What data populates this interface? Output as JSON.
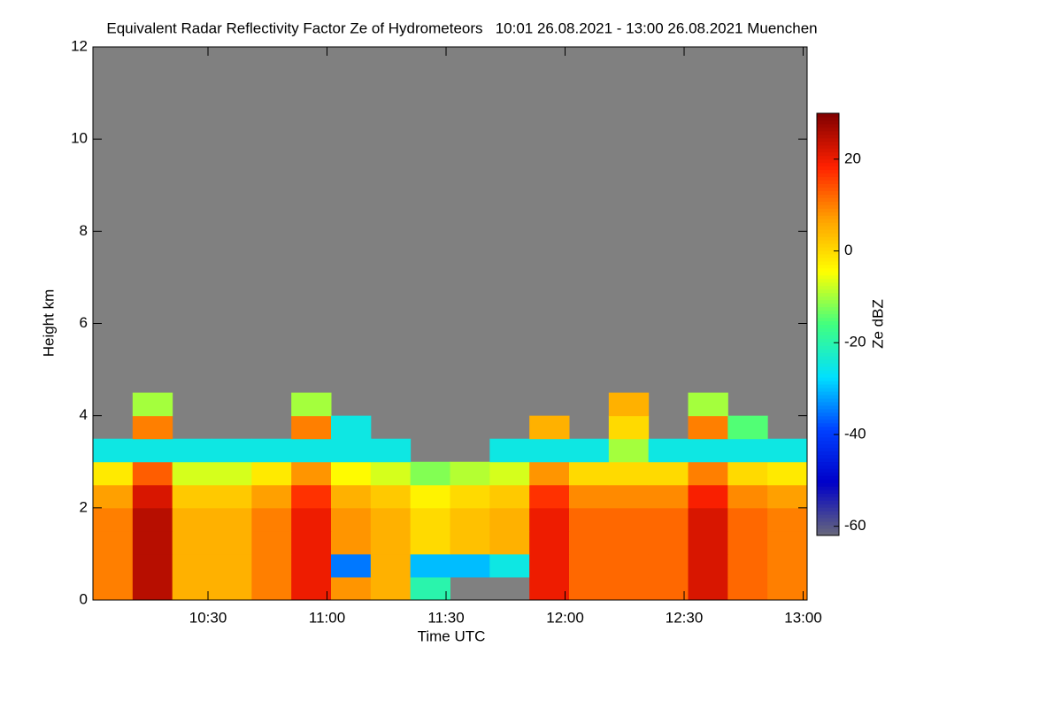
{
  "chart_data": {
    "type": "heatmap",
    "title": "Equivalent Radar Reflectivity Factor Ze of Hydrometeors   10:01 26.08.2021 - 13:00 26.08.2021 Muenchen",
    "xlabel": "Time UTC",
    "ylabel": "Height km",
    "colorbar_label": "Ze dBZ",
    "xlim": [
      1,
      181
    ],
    "xticks": [
      {
        "value": 30,
        "label": "10:30"
      },
      {
        "value": 60,
        "label": "11:00"
      },
      {
        "value": 90,
        "label": "11:30"
      },
      {
        "value": 120,
        "label": "12:00"
      },
      {
        "value": 150,
        "label": "12:30"
      },
      {
        "value": 180,
        "label": "13:00"
      }
    ],
    "ylim": [
      0,
      12
    ],
    "yticks": [
      0,
      2,
      4,
      6,
      8,
      10,
      12
    ],
    "zlim": [
      -62,
      30
    ],
    "zticks": [
      -60,
      -40,
      -20,
      0,
      20
    ],
    "colors": [
      "#6a6a7a",
      "#0000c8",
      "#0040ff",
      "#00e0ff",
      "#40ff80",
      "#ffff00",
      "#ffa000",
      "#ff2000",
      "#800000"
    ],
    "missing_color": "#808080",
    "x_edges": [
      1,
      11,
      21,
      31,
      41,
      51,
      61,
      71,
      81,
      91,
      101,
      111,
      121,
      131,
      141,
      151,
      161,
      171,
      181
    ],
    "y_edges": [
      0,
      0.5,
      1,
      1.5,
      2,
      2.5,
      3,
      3.5,
      4,
      4.5
    ],
    "values": [
      [
        10,
        25,
        5,
        5,
        10,
        20,
        8,
        5,
        -20,
        null,
        null,
        20,
        12,
        12,
        12,
        22,
        12,
        10
      ],
      [
        10,
        25,
        5,
        5,
        10,
        20,
        -35,
        5,
        -30,
        -30,
        -25,
        20,
        12,
        12,
        12,
        22,
        12,
        10
      ],
      [
        10,
        25,
        5,
        5,
        10,
        20,
        8,
        5,
        0,
        3,
        5,
        20,
        12,
        12,
        12,
        22,
        12,
        10
      ],
      [
        10,
        25,
        5,
        5,
        10,
        20,
        8,
        5,
        0,
        3,
        5,
        20,
        12,
        12,
        12,
        22,
        12,
        10
      ],
      [
        7,
        22,
        2,
        2,
        7,
        17,
        5,
        2,
        -3,
        0,
        2,
        17,
        9,
        9,
        9,
        19,
        9,
        7
      ],
      [
        -2,
        13,
        -7,
        -7,
        -2,
        8,
        -4,
        -7,
        -12,
        -9,
        -7,
        8,
        0,
        0,
        0,
        10,
        0,
        -2
      ],
      [
        -25,
        -25,
        -25,
        -25,
        -25,
        -25,
        -25,
        -25,
        null,
        null,
        -25,
        -25,
        -25,
        -10,
        -25,
        -25,
        -25,
        -25
      ],
      [
        null,
        10,
        null,
        null,
        null,
        10,
        -25,
        null,
        null,
        null,
        null,
        5,
        null,
        0,
        null,
        10,
        -15,
        null
      ],
      [
        null,
        -10,
        null,
        null,
        null,
        -10,
        null,
        null,
        null,
        null,
        null,
        null,
        null,
        5,
        null,
        -10,
        null,
        null
      ]
    ]
  }
}
